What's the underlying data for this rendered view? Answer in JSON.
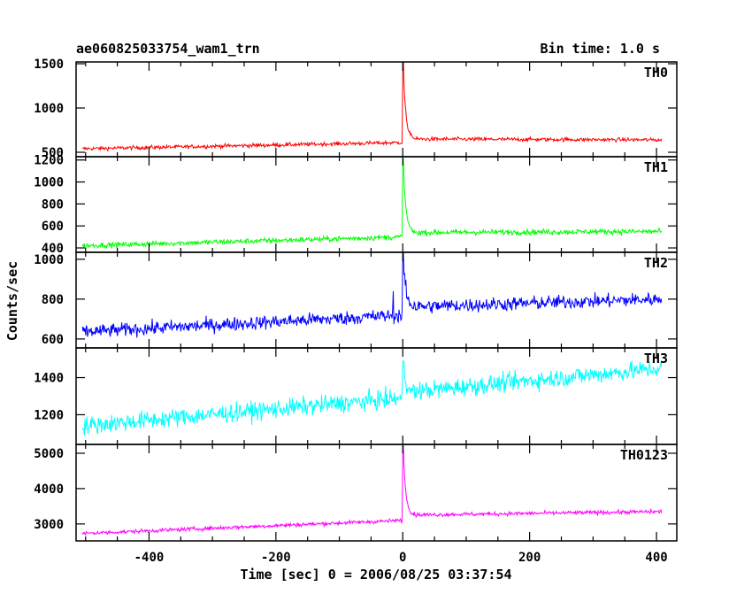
{
  "header": {
    "title": "ae060825033754_wam1_trn",
    "bin_time": "Bin time: 1.0 s"
  },
  "chart_data": {
    "type": "line",
    "xlabel": "Time [sec] 0 = 2006/08/25 03:37:54",
    "ylabel": "Counts/sec",
    "xlim": [
      -515,
      432
    ],
    "x_ticks": [
      -400,
      -200,
      0,
      200,
      400
    ],
    "x_range": [
      -505,
      408
    ],
    "panels": [
      {
        "name": "TH0",
        "color": "#ff0000",
        "ylim": [
          450,
          1520
        ],
        "y_ticks": [
          500,
          1000,
          1500
        ],
        "y_tick_labels": [
          "500",
          "1000",
          "1500"
        ],
        "baseline_start": 540,
        "baseline_end": 640,
        "pre_peak_level": 610,
        "peak": 1520,
        "post_level": 650,
        "noise": 22,
        "features": []
      },
      {
        "name": "TH1",
        "color": "#00ff00",
        "ylim": [
          360,
          1230
        ],
        "y_ticks": [
          400,
          600,
          800,
          1000,
          1200
        ],
        "y_tick_labels": [
          "400",
          "600",
          "800",
          "1000",
          "1200"
        ],
        "baseline_start": 420,
        "baseline_end": 550,
        "pre_peak_level": 500,
        "peak": 1210,
        "post_level": 540,
        "noise": 25,
        "features": []
      },
      {
        "name": "TH2",
        "color": "#0000ff",
        "ylim": [
          555,
          1035
        ],
        "y_ticks": [
          600,
          800,
          1000
        ],
        "y_tick_labels": [
          "600",
          "800",
          "1000"
        ],
        "baseline_start": 635,
        "baseline_end": 800,
        "pre_peak_level": 720,
        "peak": 1030,
        "post_level": 760,
        "noise": 35,
        "features": [
          {
            "x": -15,
            "value": 840
          }
        ]
      },
      {
        "name": "TH3",
        "color": "#00ffff",
        "ylim": [
          1040,
          1560
        ],
        "y_ticks": [
          1200,
          1400
        ],
        "y_tick_labels": [
          "1200",
          "1400"
        ],
        "baseline_start": 1140,
        "baseline_end": 1450,
        "pre_peak_level": 1290,
        "peak": 1490,
        "post_level": 1320,
        "noise": 50,
        "features": []
      },
      {
        "name": "TH0123",
        "color": "#ff00ff",
        "ylim": [
          2520,
          5250
        ],
        "y_ticks": [
          3000,
          4000,
          5000
        ],
        "y_tick_labels": [
          "3000",
          "4000",
          "5000"
        ],
        "baseline_start": 2730,
        "baseline_end": 3350,
        "pre_peak_level": 3100,
        "peak": 5200,
        "post_level": 3250,
        "noise": 55,
        "features": []
      }
    ]
  }
}
